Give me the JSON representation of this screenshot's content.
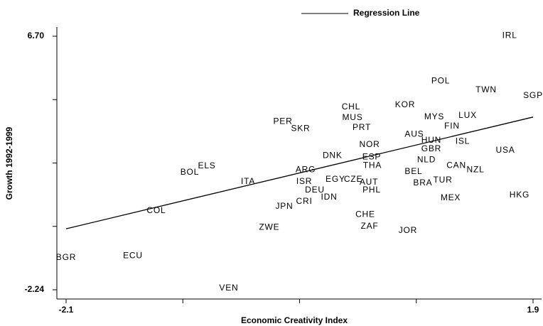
{
  "chart_data": {
    "type": "scatter",
    "xlabel": "Economic Creativity Index",
    "ylabel": "Growth 1992-1999",
    "xlim": [
      -2.1,
      1.9
    ],
    "ylim": [
      -2.24,
      6.7
    ],
    "xticks": [
      {
        "value": -2.1,
        "label": "-2.1"
      },
      {
        "value": -1.1,
        "label": null
      },
      {
        "value": -0.1,
        "label": null
      },
      {
        "value": 0.9,
        "label": null
      },
      {
        "value": 1.9,
        "label": "1.9"
      }
    ],
    "yticks": [
      {
        "value": -2.24,
        "label": "-2.24"
      },
      {
        "value": -0.005,
        "label": null
      },
      {
        "value": 2.23,
        "label": null
      },
      {
        "value": 4.465,
        "label": null
      },
      {
        "value": 6.7,
        "label": "6.70"
      }
    ],
    "labels": [
      "IRL",
      "POL",
      "TWN",
      "SGP",
      "KOR",
      "CHL",
      "MUS",
      "MYS",
      "LUX",
      "PER",
      "SKR",
      "PRT",
      "FIN",
      "AUS",
      "HUN",
      "ISL",
      "NOR",
      "GBR",
      "USA",
      "DNK",
      "ESP",
      "NLD",
      "THA",
      "CAN",
      "ELS",
      "NZL",
      "ARG",
      "BOL",
      "BEL",
      "EGY",
      "CZE",
      "ISR",
      "AUT",
      "TUR",
      "ITA",
      "BRA",
      "PHL",
      "DEU",
      "MEX",
      "HKG",
      "IDN",
      "CRI",
      "JPN",
      "COL",
      "CHE",
      "ZAF",
      "ZWE",
      "JOR",
      "BGR",
      "ECU",
      "VEN"
    ],
    "x": [
      1.7,
      1.109,
      1.498,
      1.9,
      0.804,
      0.341,
      0.354,
      1.054,
      1.34,
      -0.243,
      -0.091,
      0.433,
      1.206,
      0.883,
      1.029,
      1.297,
      0.5,
      1.029,
      1.663,
      0.182,
      0.518,
      0.987,
      0.524,
      1.243,
      -0.894,
      1.407,
      -0.048,
      -1.041,
      0.877,
      0.207,
      0.36,
      -0.06,
      0.494,
      1.127,
      -0.541,
      0.956,
      0.518,
      0.031,
      1.194,
      1.784,
      0.153,
      -0.06,
      -0.231,
      -1.327,
      0.463,
      0.5,
      -0.359,
      0.828,
      -2.1,
      -1.528,
      -0.706
    ],
    "y": [
      6.72,
      5.12,
      4.8,
      4.6,
      4.27,
      4.2,
      3.82,
      3.85,
      3.9,
      3.69,
      3.44,
      3.47,
      3.52,
      3.24,
      3.02,
      2.99,
      2.87,
      2.72,
      2.67,
      2.49,
      2.44,
      2.34,
      2.14,
      2.14,
      2.12,
      1.99,
      1.99,
      1.89,
      1.92,
      1.64,
      1.64,
      1.57,
      1.54,
      1.62,
      1.57,
      1.52,
      1.27,
      1.27,
      0.99,
      1.09,
      1.02,
      0.87,
      0.69,
      0.54,
      0.41,
      -0.01,
      -0.04,
      -0.16,
      -1.11,
      -1.04,
      -2.19
    ],
    "regression": {
      "name": "Regression Line",
      "color": "#000000",
      "x": [
        -2.1,
        1.9
      ],
      "y": [
        -0.09,
        3.85
      ]
    }
  }
}
